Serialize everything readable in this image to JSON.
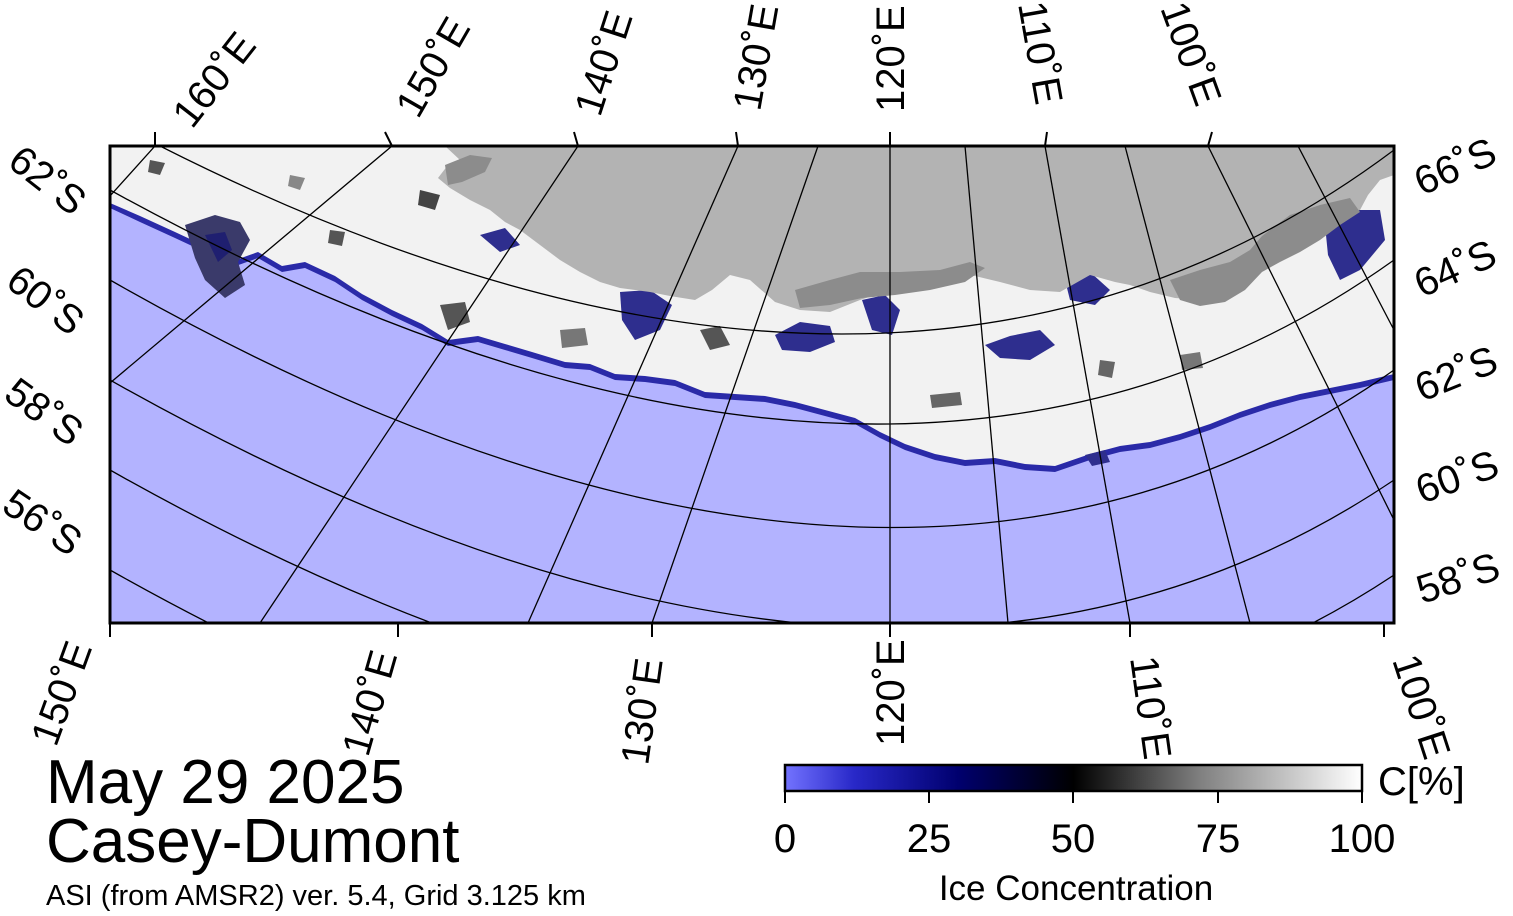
{
  "title": {
    "date": "May 29 2025",
    "region": "Casey-Dumont",
    "subtitle": "ASI (from AMSR2) ver. 5.4,  Grid 3.125 km"
  },
  "colors": {
    "ocean": "#b3b3ff",
    "land": "#b3b3b3",
    "land_ice_shelf": "#8c8c8c",
    "ice_high": "#ffffff",
    "ice_mid": "#000000",
    "ice_low": "#00004d",
    "ice_zero": "#7373ff",
    "frame": "#000000"
  },
  "map": {
    "top_lon_labels": [
      "160˚E",
      "150˚E",
      "140˚E",
      "130˚E",
      "120˚E",
      "110˚E",
      "100˚E"
    ],
    "bottom_lon_labels": [
      "150˚E",
      "140˚E",
      "130˚E",
      "120˚E",
      "110˚E",
      "100˚E"
    ],
    "left_lat_labels": [
      "62˚S",
      "60˚S",
      "58˚S",
      "56˚S"
    ],
    "right_lat_labels": [
      "66˚S",
      "64˚S",
      "62˚S",
      "60˚S",
      "58˚S"
    ]
  },
  "colorbar": {
    "title": "Ice Concentration",
    "unit": "C[%]",
    "ticks": [
      "0",
      "25",
      "50",
      "75",
      "100"
    ],
    "min": 0,
    "max": 100
  }
}
